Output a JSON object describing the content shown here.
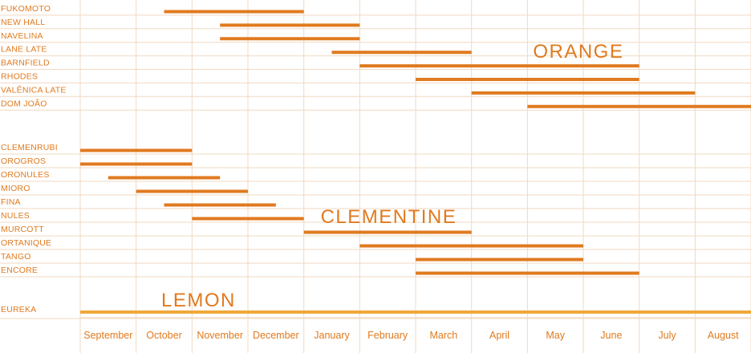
{
  "chart_data": {
    "type": "gantt",
    "months": [
      "September",
      "October",
      "November",
      "December",
      "January",
      "February",
      "March",
      "April",
      "May",
      "June",
      "July",
      "August"
    ],
    "groups": [
      {
        "name": "ORANGE",
        "varieties": [
          {
            "name": "FUKOMOTO",
            "start": 1.5,
            "end": 4
          },
          {
            "name": "NEW HALL",
            "start": 2.5,
            "end": 5
          },
          {
            "name": "NAVELINA",
            "start": 2.5,
            "end": 5
          },
          {
            "name": "LANE LATE",
            "start": 4.5,
            "end": 7
          },
          {
            "name": "BARNFIELD",
            "start": 5,
            "end": 10
          },
          {
            "name": "RHODES",
            "start": 6,
            "end": 10
          },
          {
            "name": "VALÊNICA LATE",
            "start": 7,
            "end": 11
          },
          {
            "name": "DOM JOÃO",
            "start": 8,
            "end": 12
          }
        ]
      },
      {
        "name": "CLEMENTINE",
        "varieties": [
          {
            "name": "CLEMENRUBI",
            "start": 0,
            "end": 2
          },
          {
            "name": "OROGROS",
            "start": 0,
            "end": 2
          },
          {
            "name": "ORONULES",
            "start": 0.5,
            "end": 2.5
          },
          {
            "name": "MIORO",
            "start": 1,
            "end": 3
          },
          {
            "name": "FINA",
            "start": 1.5,
            "end": 3.5
          },
          {
            "name": "NULES",
            "start": 2,
            "end": 4
          },
          {
            "name": "MURCOTT",
            "start": 4,
            "end": 7
          },
          {
            "name": "ORTANIQUE",
            "start": 5,
            "end": 9
          },
          {
            "name": "TANGO",
            "start": 6,
            "end": 9
          },
          {
            "name": "ENCORE",
            "start": 6,
            "end": 10
          }
        ]
      },
      {
        "name": "LEMON",
        "varieties": [
          {
            "name": "EUREKA",
            "start": 0,
            "end": 12
          }
        ]
      }
    ],
    "colors": {
      "accent": "#e07a1f",
      "lemon": "#f0a83a",
      "grid": "#f1d9c2"
    }
  }
}
